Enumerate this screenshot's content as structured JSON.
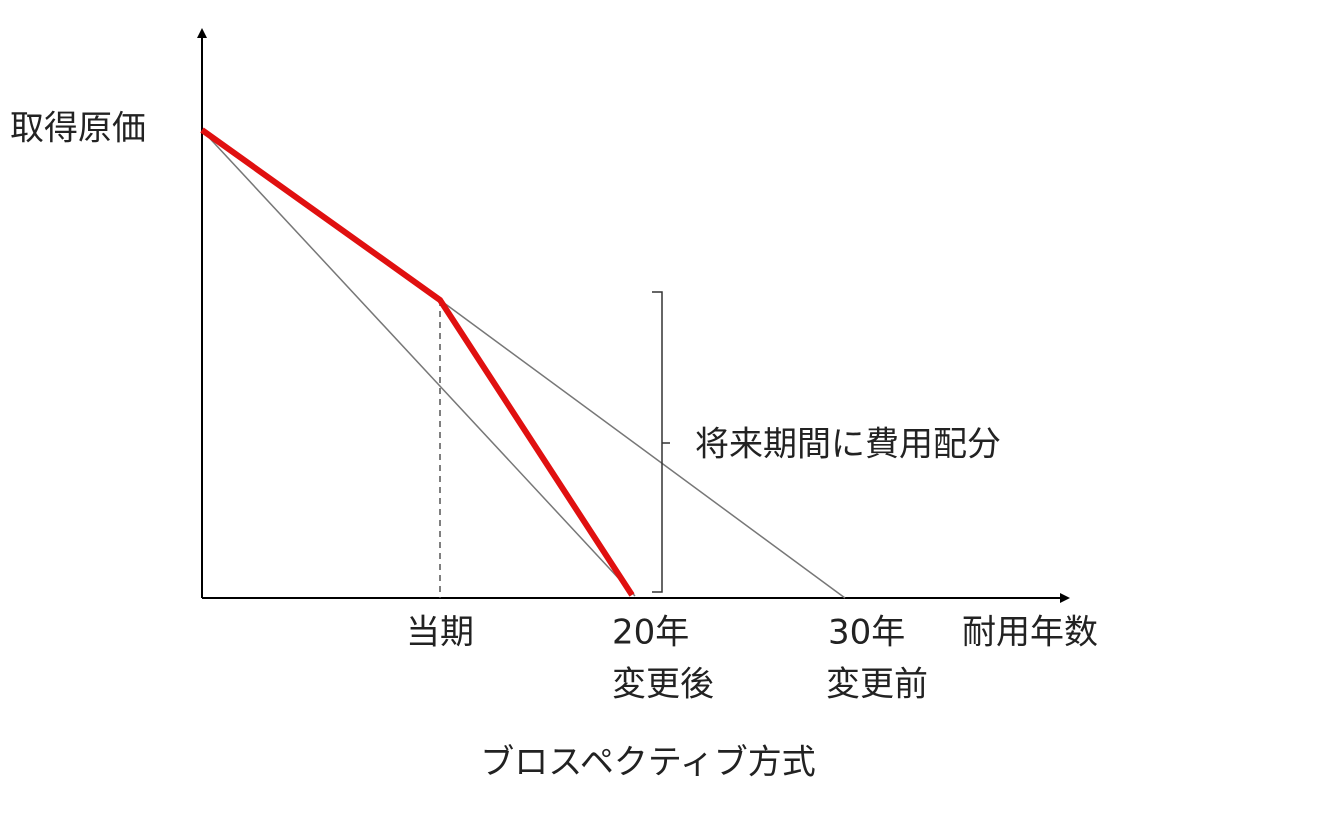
{
  "diagram": {
    "y_axis_label": "取得原価",
    "bracket_label": "将来期間に費用配分",
    "x_labels": [
      "当期",
      "20年",
      "変更後",
      "30年",
      "変更前"
    ],
    "x_axis_label": "耐用年数",
    "caption": "ブロスペクティブ方式"
  }
}
